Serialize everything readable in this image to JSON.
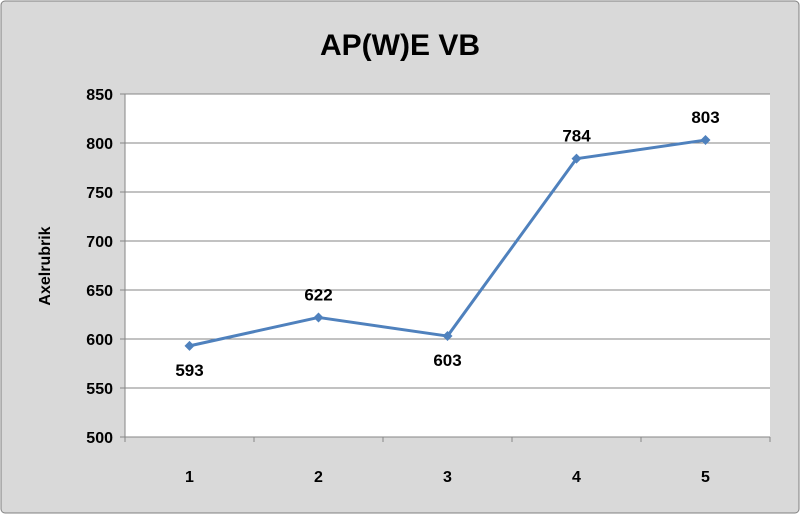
{
  "colors": {
    "chart_background": "#d9d9d9",
    "plot_background": "#ffffff",
    "gridline": "#868686",
    "series_line": "#4f81bd",
    "marker": "#4f81bd",
    "text": "#000000"
  },
  "chart_data": {
    "type": "line",
    "title": "AP(W)E VB",
    "xlabel": "",
    "ylabel": "Axelrubrik",
    "categories": [
      "1",
      "2",
      "3",
      "4",
      "5"
    ],
    "series": [
      {
        "name": "",
        "values": [
          593,
          622,
          603,
          784,
          803
        ],
        "marker": "diamond"
      }
    ],
    "data_labels": [
      "593",
      "622",
      "603",
      "784",
      "803"
    ],
    "data_label_positions": [
      "below",
      "above",
      "below",
      "above",
      "above"
    ],
    "ylim": [
      500,
      850
    ],
    "yticks": [
      500,
      550,
      600,
      650,
      700,
      750,
      800,
      850
    ],
    "grid": "horizontal",
    "legend": "none"
  }
}
